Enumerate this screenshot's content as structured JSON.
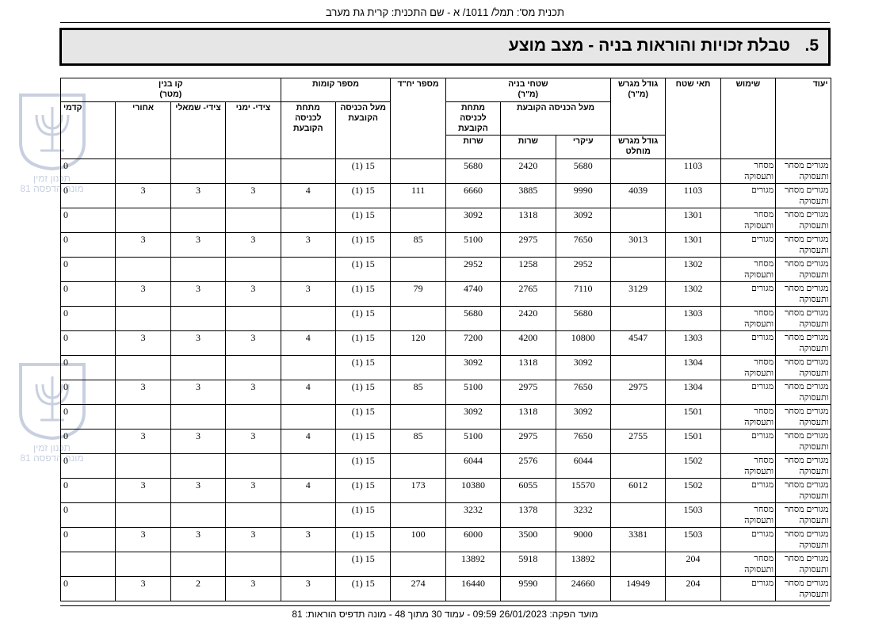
{
  "header": {
    "plan_line": "תכנית מס': תמל/ 1011/ א - שם התכנית: קרית גת מערב"
  },
  "section": {
    "number": "5.",
    "title": "טבלת זכויות והוראות בניה - מצב מוצע"
  },
  "watermark": {
    "line1": "תכנון זמין",
    "line2": "מונה הדפסה 81"
  },
  "table": {
    "headers": {
      "designation": "יעוד",
      "use": "שימוש",
      "cell": "תאי שטח",
      "plot": "גודל מגרש",
      "plot_unit": "(מ\"ר)",
      "plot_abs": "גודל מגרש מוחלט",
      "areas": "שטחי בניה",
      "areas_unit": "(מ\"ר)",
      "above": "מעל הכניסה הקובעת",
      "below": "מתחת לכניסה הקובעת",
      "main": "עיקרי",
      "service_above": "שרות",
      "service_below": "שרות",
      "units": "מספר יח\"ד",
      "floors": "מספר קומות",
      "floors_above": "מעל הכניסה הקובעת",
      "floors_below": "מתחת לכניסה הקובעת",
      "setback": "קו בנין",
      "setback_unit": "(מטר)",
      "side_right": "צידי- ימני",
      "side_left": "צידי- שמאלי",
      "rear": "אחורי",
      "front": "קדמי"
    },
    "rows": [
      [
        "מגורים מסחר ותעסוקה",
        "מסחר ותעסוקה",
        1103,
        null,
        5680,
        2420,
        5680,
        null,
        "15 (1)",
        null,
        null,
        null,
        null,
        0
      ],
      [
        "מגורים מסחר ותעסוקה",
        "מגורים",
        1103,
        4039,
        9990,
        3885,
        6660,
        111,
        "15 (1)",
        4,
        3,
        3,
        3,
        0
      ],
      [
        "מגורים מסחר ותעסוקה",
        "מסחר ותעסוקה",
        1301,
        null,
        3092,
        1318,
        3092,
        null,
        "15 (1)",
        null,
        null,
        null,
        null,
        0
      ],
      [
        "מגורים מסחר ותעסוקה",
        "מגורים",
        1301,
        3013,
        7650,
        2975,
        5100,
        85,
        "15 (1)",
        3,
        3,
        3,
        3,
        0
      ],
      [
        "מגורים מסחר ותעסוקה",
        "מסחר ותעסוקה",
        1302,
        null,
        2952,
        1258,
        2952,
        null,
        "15 (1)",
        null,
        null,
        null,
        null,
        0
      ],
      [
        "מגורים מסחר ותעסוקה",
        "מגורים",
        1302,
        3129,
        7110,
        2765,
        4740,
        79,
        "15 (1)",
        3,
        3,
        3,
        3,
        0
      ],
      [
        "מגורים מסחר ותעסוקה",
        "מסחר ותעסוקה",
        1303,
        null,
        5680,
        2420,
        5680,
        null,
        "15 (1)",
        null,
        null,
        null,
        null,
        0
      ],
      [
        "מגורים מסחר ותעסוקה",
        "מגורים",
        1303,
        4547,
        10800,
        4200,
        7200,
        120,
        "15 (1)",
        4,
        3,
        3,
        3,
        0
      ],
      [
        "מגורים מסחר ותעסוקה",
        "מסחר ותעסוקה",
        1304,
        null,
        3092,
        1318,
        3092,
        null,
        "15 (1)",
        null,
        null,
        null,
        null,
        0
      ],
      [
        "מגורים מסחר ותעסוקה",
        "מגורים",
        1304,
        2975,
        7650,
        2975,
        5100,
        85,
        "15 (1)",
        4,
        3,
        3,
        3,
        0
      ],
      [
        "מגורים מסחר ותעסוקה",
        "מסחר ותעסוקה",
        1501,
        null,
        3092,
        1318,
        3092,
        null,
        "15 (1)",
        null,
        null,
        null,
        null,
        0
      ],
      [
        "מגורים מסחר ותעסוקה",
        "מגורים",
        1501,
        2755,
        7650,
        2975,
        5100,
        85,
        "15 (1)",
        4,
        3,
        3,
        3,
        0
      ],
      [
        "מגורים מסחר ותעסוקה",
        "מסחר ותעסוקה",
        1502,
        null,
        6044,
        2576,
        6044,
        null,
        "15 (1)",
        null,
        null,
        null,
        null,
        0
      ],
      [
        "מגורים מסחר ותעסוקה",
        "מגורים",
        1502,
        6012,
        15570,
        6055,
        10380,
        173,
        "15 (1)",
        4,
        3,
        3,
        3,
        0
      ],
      [
        "מגורים מסחר ותעסוקה",
        "מסחר ותעסוקה",
        1503,
        null,
        3232,
        1378,
        3232,
        null,
        "15 (1)",
        null,
        null,
        null,
        null,
        0
      ],
      [
        "מגורים מסחר ותעסוקה",
        "מגורים",
        1503,
        3381,
        9000,
        3500,
        6000,
        100,
        "15 (1)",
        3,
        3,
        3,
        3,
        0
      ],
      [
        "מגורים מסחר ותעסוקה",
        "מסחר ותעסוקה",
        204,
        null,
        13892,
        5918,
        13892,
        null,
        "15 (1)",
        null,
        null,
        null,
        null,
        null
      ],
      [
        "מגורים מסחר ותעסוקה",
        "מגורים",
        204,
        14949,
        24660,
        9590,
        16440,
        274,
        "15 (1)",
        3,
        3,
        2,
        3,
        0
      ]
    ]
  },
  "footer": {
    "text": "מועד הפקה: 26/01/2023 09:59 - עמוד 30 מתוך 48 - מונה תדפיס הוראות: 81"
  }
}
